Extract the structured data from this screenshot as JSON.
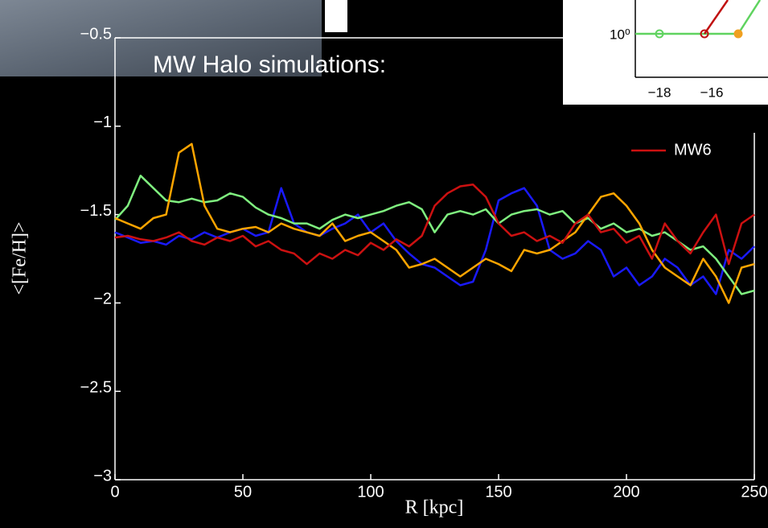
{
  "inset": {
    "ytick": "10⁰",
    "xticks": [
      "−18",
      "−16"
    ]
  },
  "chart_data": {
    "type": "line",
    "annotation": "MW Halo simulations:",
    "x_label": "R [kpc]",
    "y_label": "<[Fe/H]>",
    "xlim": [
      0,
      250
    ],
    "ylim": [
      -3,
      -0.5
    ],
    "xticks": [
      0,
      50,
      100,
      150,
      200,
      250
    ],
    "yticks": [
      {
        "value": -3,
        "label": "−3"
      },
      {
        "value": -2.5,
        "label": "−2.5"
      },
      {
        "value": -2,
        "label": "−2"
      },
      {
        "value": -1.5,
        "label": "−1.5"
      },
      {
        "value": -1,
        "label": "−1"
      },
      {
        "value": -0.5,
        "label": "−0.5"
      }
    ],
    "grid": false,
    "legend": "upper right",
    "x": [
      0,
      5,
      10,
      15,
      20,
      25,
      30,
      35,
      40,
      45,
      50,
      55,
      60,
      65,
      70,
      75,
      80,
      85,
      90,
      95,
      100,
      105,
      110,
      115,
      120,
      125,
      130,
      135,
      140,
      145,
      150,
      155,
      160,
      165,
      170,
      175,
      180,
      185,
      190,
      195,
      200,
      205,
      210,
      215,
      220,
      225,
      230,
      235,
      240,
      245,
      250
    ],
    "series": [
      {
        "color": "#1a1aff",
        "values": [
          -1.6,
          -1.63,
          -1.66,
          -1.65,
          -1.67,
          -1.62,
          -1.64,
          -1.6,
          -1.63,
          -1.6,
          -1.58,
          -1.62,
          -1.6,
          -1.35,
          -1.55,
          -1.6,
          -1.62,
          -1.58,
          -1.55,
          -1.5,
          -1.6,
          -1.55,
          -1.65,
          -1.72,
          -1.78,
          -1.8,
          -1.85,
          -1.9,
          -1.88,
          -1.7,
          -1.42,
          -1.38,
          -1.35,
          -1.45,
          -1.7,
          -1.75,
          -1.72,
          -1.65,
          -1.7,
          -1.85,
          -1.8,
          -1.9,
          -1.85,
          -1.75,
          -1.8,
          -1.9,
          -1.85,
          -1.95,
          -1.7,
          -1.75,
          -1.68
        ]
      },
      {
        "color": "#7ff07f",
        "values": [
          -1.53,
          -1.45,
          -1.28,
          -1.35,
          -1.42,
          -1.43,
          -1.41,
          -1.43,
          -1.42,
          -1.38,
          -1.4,
          -1.46,
          -1.5,
          -1.52,
          -1.55,
          -1.55,
          -1.58,
          -1.53,
          -1.5,
          -1.52,
          -1.5,
          -1.48,
          -1.45,
          -1.43,
          -1.47,
          -1.6,
          -1.5,
          -1.48,
          -1.5,
          -1.47,
          -1.55,
          -1.5,
          -1.48,
          -1.47,
          -1.5,
          -1.48,
          -1.55,
          -1.52,
          -1.58,
          -1.55,
          -1.6,
          -1.58,
          -1.62,
          -1.6,
          -1.65,
          -1.7,
          -1.68,
          -1.75,
          -1.85,
          -1.95,
          -1.93
        ]
      },
      {
        "color": "#ffa500",
        "values": [
          -1.52,
          -1.55,
          -1.58,
          -1.52,
          -1.5,
          -1.15,
          -1.1,
          -1.45,
          -1.58,
          -1.6,
          -1.58,
          -1.57,
          -1.6,
          -1.55,
          -1.58,
          -1.6,
          -1.62,
          -1.55,
          -1.65,
          -1.62,
          -1.6,
          -1.65,
          -1.7,
          -1.8,
          -1.78,
          -1.75,
          -1.8,
          -1.85,
          -1.8,
          -1.75,
          -1.78,
          -1.82,
          -1.7,
          -1.72,
          -1.7,
          -1.65,
          -1.6,
          -1.5,
          -1.4,
          -1.38,
          -1.45,
          -1.55,
          -1.7,
          -1.8,
          -1.85,
          -1.9,
          -1.75,
          -1.85,
          -2.0,
          -1.8,
          -1.78
        ]
      },
      {
        "name": "MW6",
        "color": "#cc1111",
        "values": [
          -1.63,
          -1.62,
          -1.64,
          -1.65,
          -1.63,
          -1.6,
          -1.65,
          -1.67,
          -1.63,
          -1.65,
          -1.62,
          -1.68,
          -1.65,
          -1.7,
          -1.72,
          -1.78,
          -1.72,
          -1.75,
          -1.7,
          -1.73,
          -1.66,
          -1.7,
          -1.64,
          -1.68,
          -1.62,
          -1.45,
          -1.38,
          -1.34,
          -1.33,
          -1.4,
          -1.55,
          -1.62,
          -1.6,
          -1.65,
          -1.62,
          -1.66,
          -1.55,
          -1.5,
          -1.6,
          -1.58,
          -1.66,
          -1.62,
          -1.75,
          -1.55,
          -1.65,
          -1.72,
          -1.6,
          -1.5,
          -1.78,
          -1.55,
          -1.5
        ]
      }
    ]
  }
}
